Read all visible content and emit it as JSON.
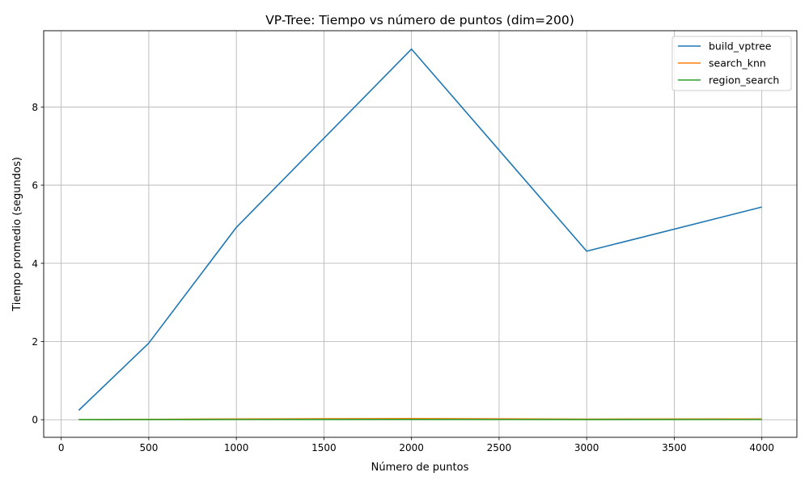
{
  "chart_data": {
    "type": "line",
    "title": "VP-Tree: Tiempo vs número de puntos (dim=200)",
    "xlabel": "Número de puntos",
    "ylabel": "Tiempo promedio (segundos)",
    "xlim": [
      -100,
      4200
    ],
    "ylim": [
      -0.45,
      9.95
    ],
    "xticks": [
      0,
      500,
      1000,
      1500,
      2000,
      2500,
      3000,
      3500,
      4000
    ],
    "yticks": [
      0,
      2,
      4,
      6,
      8
    ],
    "grid": true,
    "legend_position": "top-right",
    "x": [
      100,
      500,
      1000,
      2000,
      3000,
      4000
    ],
    "series": [
      {
        "name": "build_vptree",
        "color": "#1f77b4",
        "values": [
          0.24,
          1.96,
          4.92,
          9.48,
          4.31,
          5.44
        ]
      },
      {
        "name": "search_knn",
        "color": "#ff7f0e",
        "values": [
          0.002,
          0.01,
          0.02,
          0.03,
          0.015,
          0.02
        ]
      },
      {
        "name": "region_search",
        "color": "#2ca02c",
        "values": [
          0.001,
          0.003,
          0.005,
          0.006,
          0.004,
          0.005
        ]
      }
    ]
  }
}
